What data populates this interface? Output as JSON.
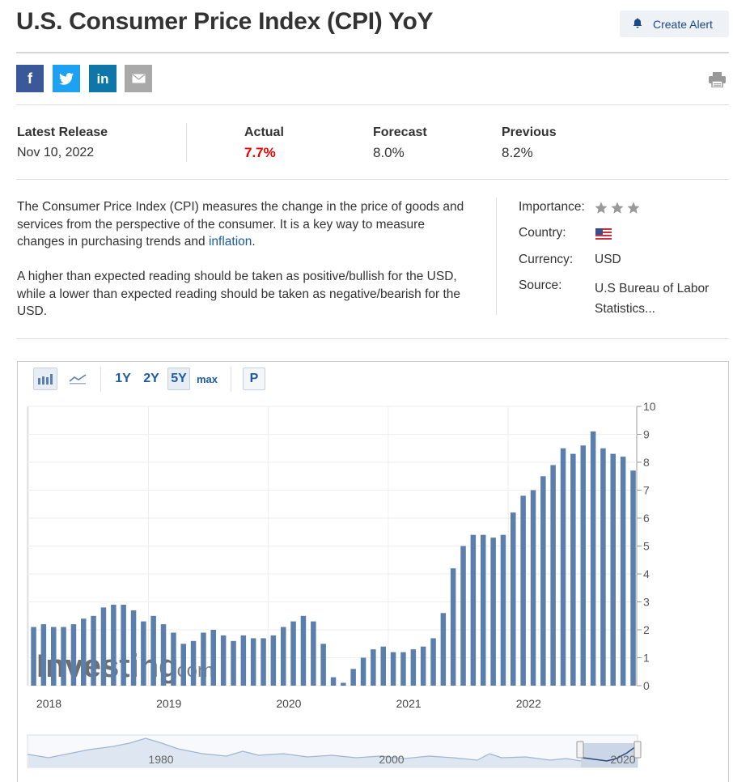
{
  "header": {
    "title": "U.S. Consumer Price Index (CPI) YoY",
    "create_alert_label": "Create Alert"
  },
  "share": [
    {
      "id": "facebook",
      "glyph": "f",
      "icon": "facebook-icon",
      "color": "#3b5998"
    },
    {
      "id": "twitter",
      "icon": "twitter-icon",
      "color": "#1da1f2"
    },
    {
      "id": "linkedin",
      "glyph": "in",
      "icon": "linkedin-icon",
      "color": "#0e76a8"
    },
    {
      "id": "email",
      "icon": "mail-icon",
      "color": "#a9a9a9"
    }
  ],
  "release": {
    "latest_label": "Latest Release",
    "latest_date": "Nov 10, 2022",
    "actual_label": "Actual",
    "actual_value": "7.7%",
    "forecast_label": "Forecast",
    "forecast_value": "8.0%",
    "previous_label": "Previous",
    "previous_value": "8.2%"
  },
  "description": {
    "p1_text": "The Consumer Price Index (CPI) measures the change in the price of goods and services from the perspective of the consumer. It is a key way to measure changes in purchasing trends and ",
    "p1_link": "inflation",
    "p1_end": ".",
    "p2": "A higher than expected reading should be taken as positive/bullish for the USD, while a lower than expected reading should be taken as negative/bearish for the USD."
  },
  "meta": {
    "importance_label": "Importance:",
    "importance_stars": 3,
    "country_label": "Country:",
    "country_flag": "us-flag-icon",
    "currency_label": "Currency:",
    "currency_value": "USD",
    "source_label": "Source:",
    "source_value": "U.S Bureau of Labor Statistics..."
  },
  "toolbar": {
    "ranges": [
      "1Y",
      "2Y",
      "5Y",
      "max"
    ],
    "selected_range": "5Y",
    "p_label": "P",
    "icons": [
      "bar-chart-icon",
      "line-chart-icon"
    ]
  },
  "watermark": {
    "brand": "Investing",
    "suffix": ".com"
  },
  "chart_data": {
    "type": "bar",
    "color": "#5b7fad",
    "ylim": [
      0,
      10
    ],
    "y_ticks": [
      "0",
      "1",
      "2",
      "3",
      "4",
      "5",
      "6",
      "7",
      "8",
      "9",
      "10"
    ],
    "x_tick_labels": [
      "2018",
      "2019",
      "2020",
      "2021",
      "2022"
    ],
    "values": [
      2.1,
      2.2,
      2.1,
      2.1,
      2.2,
      2.4,
      2.5,
      2.8,
      2.9,
      2.9,
      2.7,
      2.3,
      2.5,
      2.2,
      1.9,
      1.5,
      1.6,
      1.9,
      2.0,
      1.8,
      1.6,
      1.8,
      1.7,
      1.7,
      1.8,
      2.1,
      2.3,
      2.5,
      2.3,
      1.5,
      0.3,
      0.1,
      0.6,
      1.0,
      1.3,
      1.4,
      1.2,
      1.2,
      1.3,
      1.4,
      1.7,
      2.6,
      4.2,
      5.0,
      5.4,
      5.4,
      5.3,
      5.4,
      6.2,
      6.8,
      7.0,
      7.5,
      7.9,
      8.5,
      8.3,
      8.6,
      9.1,
      8.5,
      8.3,
      8.2,
      7.7
    ],
    "navigator": {
      "x_labels": [
        "1980",
        "2000",
        "2020"
      ]
    }
  }
}
